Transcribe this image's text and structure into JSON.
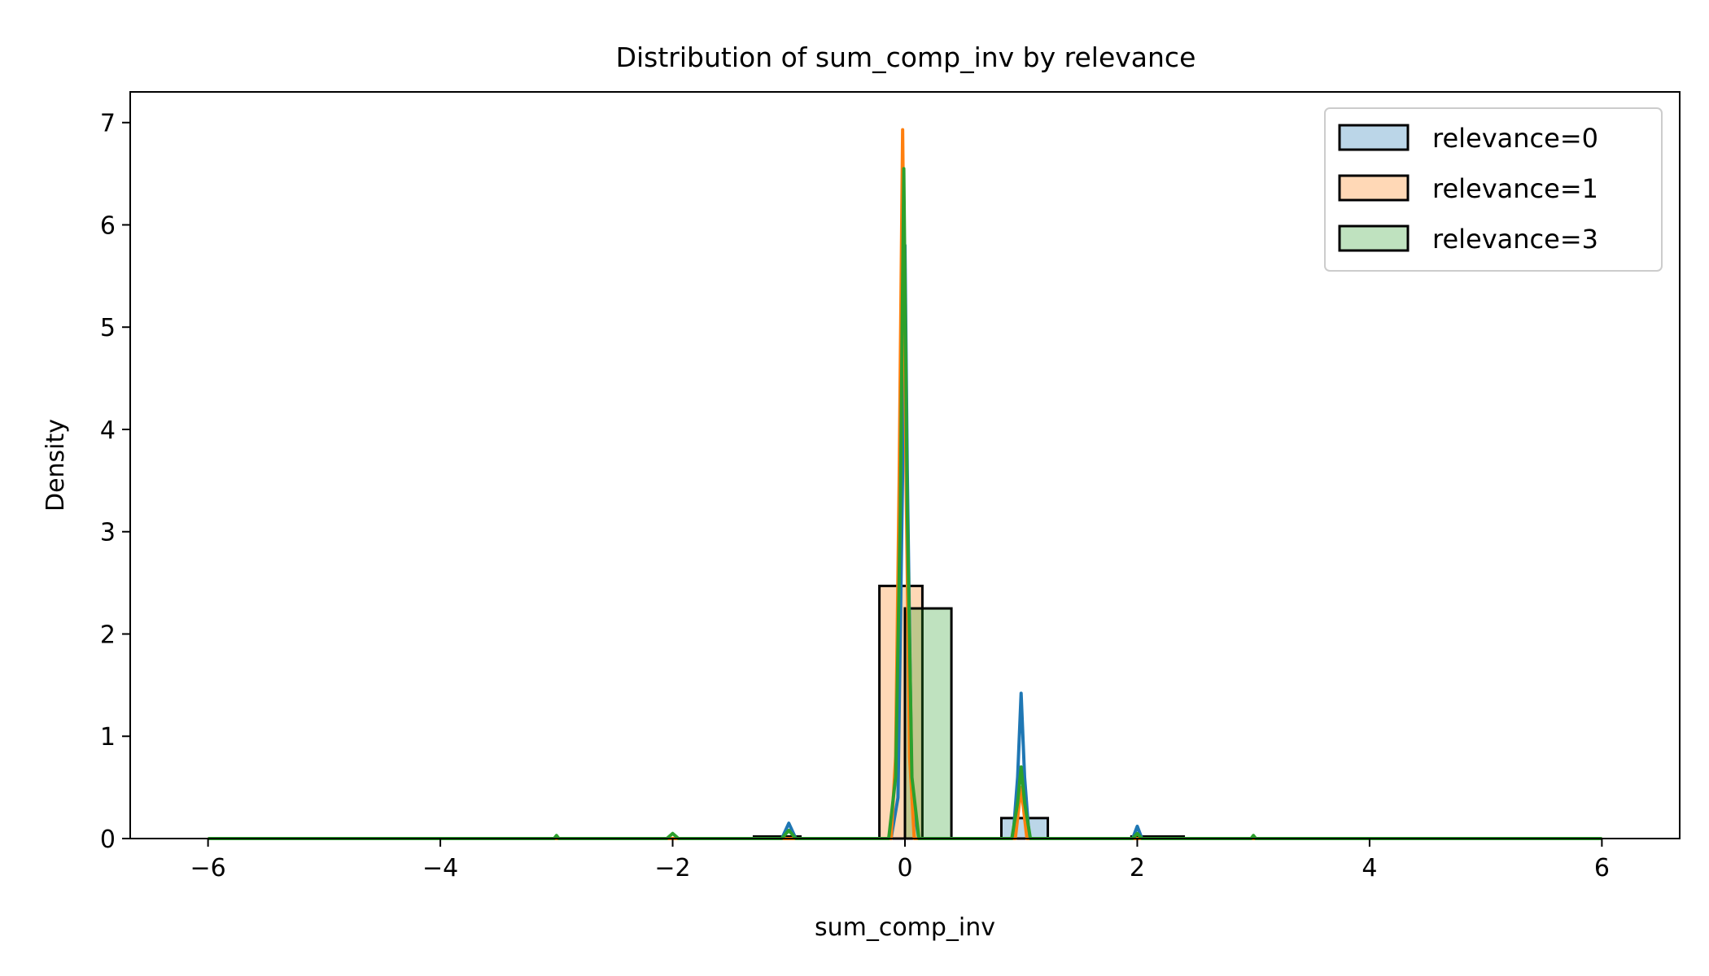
{
  "chart_data": {
    "type": "histogram",
    "title": "Distribution of sum_comp_inv by relevance",
    "xlabel": "sum_comp_inv",
    "ylabel": "Density",
    "xlim": [
      -6.67,
      6.67
    ],
    "ylim": [
      0,
      7.3
    ],
    "xticks": [
      -6,
      -4,
      -2,
      0,
      2,
      4,
      6
    ],
    "xtick_labels": [
      "−6",
      "−4",
      "−2",
      "0",
      "2",
      "4",
      "6"
    ],
    "yticks": [
      0,
      1,
      2,
      3,
      4,
      5,
      6,
      7
    ],
    "ytick_labels": [
      "0",
      "1",
      "2",
      "3",
      "4",
      "5",
      "6",
      "7"
    ],
    "grid": false,
    "legend_position": "top-right",
    "series": [
      {
        "name": "relevance=0",
        "color": "#1f77b4",
        "bars": [
          [
            -1.3,
            -0.9,
            0.02
          ],
          [
            -0.1,
            0.2,
            0.0
          ],
          [
            0.83,
            1.23,
            0.2
          ],
          [
            1.95,
            2.4,
            0.02
          ]
        ],
        "kde": [
          [
            -6,
            0.0
          ],
          [
            -1.06,
            0.0
          ],
          [
            -1.0,
            0.15
          ],
          [
            -0.94,
            0.0
          ],
          [
            -0.12,
            0.0
          ],
          [
            -0.06,
            0.4
          ],
          [
            -0.02,
            3.6
          ],
          [
            0.0,
            5.8
          ],
          [
            0.02,
            3.6
          ],
          [
            0.06,
            0.4
          ],
          [
            0.12,
            0.0
          ],
          [
            0.93,
            0.0
          ],
          [
            0.97,
            0.6
          ],
          [
            1.0,
            1.42
          ],
          [
            1.03,
            0.6
          ],
          [
            1.07,
            0.0
          ],
          [
            1.96,
            0.0
          ],
          [
            2.0,
            0.12
          ],
          [
            2.04,
            0.0
          ],
          [
            6,
            0.0
          ]
        ]
      },
      {
        "name": "relevance=1",
        "color": "#ff7f0e",
        "bars": [
          [
            -0.22,
            0.15,
            2.47
          ]
        ],
        "kde": [
          [
            -6,
            0.0
          ],
          [
            -0.12,
            0.0
          ],
          [
            -0.08,
            0.8
          ],
          [
            -0.05,
            3.5
          ],
          [
            -0.02,
            6.93
          ],
          [
            0.01,
            3.5
          ],
          [
            0.04,
            0.8
          ],
          [
            0.08,
            0.0
          ],
          [
            0.95,
            0.0
          ],
          [
            1.0,
            0.5
          ],
          [
            1.05,
            0.0
          ],
          [
            6,
            0.0
          ]
        ]
      },
      {
        "name": "relevance=3",
        "color": "#2ca02c",
        "bars": [
          [
            0.0,
            0.4,
            2.25
          ]
        ],
        "kde": [
          [
            -6,
            0.0
          ],
          [
            -3.02,
            0.0
          ],
          [
            -3.0,
            0.03
          ],
          [
            -2.98,
            0.0
          ],
          [
            -2.05,
            0.0
          ],
          [
            -2.0,
            0.05
          ],
          [
            -1.95,
            0.0
          ],
          [
            -1.06,
            0.0
          ],
          [
            -1.0,
            0.08
          ],
          [
            -0.94,
            0.0
          ],
          [
            -0.14,
            0.0
          ],
          [
            -0.08,
            0.6
          ],
          [
            -0.04,
            3.2
          ],
          [
            -0.01,
            6.55
          ],
          [
            0.02,
            3.2
          ],
          [
            0.06,
            0.6
          ],
          [
            0.12,
            0.0
          ],
          [
            0.92,
            0.0
          ],
          [
            0.97,
            0.35
          ],
          [
            1.0,
            0.7
          ],
          [
            1.03,
            0.35
          ],
          [
            1.08,
            0.0
          ],
          [
            1.96,
            0.0
          ],
          [
            2.0,
            0.05
          ],
          [
            2.04,
            0.0
          ],
          [
            2.98,
            0.0
          ],
          [
            3.0,
            0.03
          ],
          [
            3.02,
            0.0
          ],
          [
            6,
            0.0
          ]
        ]
      }
    ]
  }
}
